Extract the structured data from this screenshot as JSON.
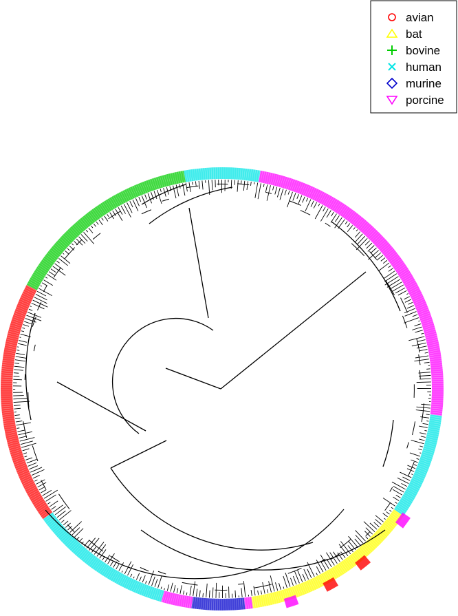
{
  "legend": {
    "items": [
      {
        "label": "avian",
        "marker": "circle",
        "color": "#ff0000"
      },
      {
        "label": "bat",
        "marker": "triangle-up",
        "color": "#ffff00"
      },
      {
        "label": "bovine",
        "marker": "plus",
        "color": "#00cc00"
      },
      {
        "label": "human",
        "marker": "x",
        "color": "#00e5e5"
      },
      {
        "label": "murine",
        "marker": "diamond",
        "color": "#0000cc"
      },
      {
        "label": "porcine",
        "marker": "triangle-down",
        "color": "#ff00ff"
      }
    ]
  },
  "diagram": {
    "type": "circular-phylogenetic-tree",
    "host_ring": [
      {
        "host": "human",
        "start_deg": -100,
        "end_deg": -80
      },
      {
        "host": "porcine",
        "start_deg": -80,
        "end_deg": 7
      },
      {
        "host": "human",
        "start_deg": 7,
        "end_deg": 35
      },
      {
        "host": "bat",
        "start_deg": 35,
        "end_deg": 82
      },
      {
        "host": "porcine",
        "start_deg": 82,
        "end_deg": 84
      },
      {
        "host": "murine",
        "start_deg": 84,
        "end_deg": 98
      },
      {
        "host": "porcine",
        "start_deg": 98,
        "end_deg": 106
      },
      {
        "host": "human",
        "start_deg": 106,
        "end_deg": 144
      },
      {
        "host": "avian",
        "start_deg": 144,
        "end_deg": 208
      },
      {
        "host": "bovine",
        "start_deg": 208,
        "end_deg": 260
      }
    ],
    "outer_patches": [
      {
        "host": "porcine",
        "at_deg": 36
      },
      {
        "host": "avian",
        "at_deg": 51
      },
      {
        "host": "avian",
        "at_deg": 61
      },
      {
        "host": "porcine",
        "at_deg": 72
      }
    ]
  }
}
